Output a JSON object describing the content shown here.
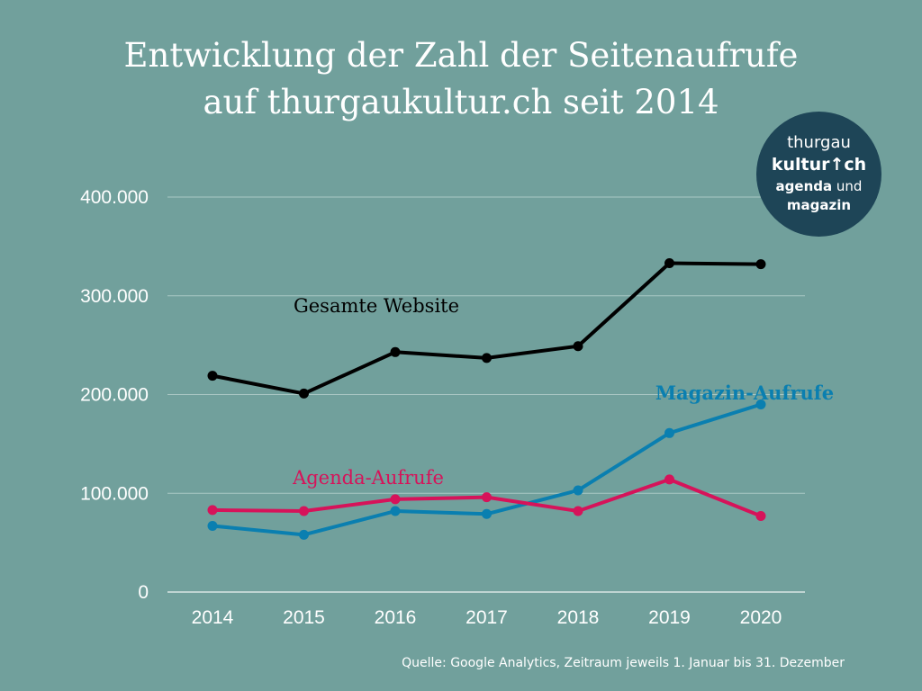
{
  "title": {
    "line1": "Entwicklung der Zahl der Seitenaufrufe",
    "line2": "auf thurgaukultur.ch seit 2014"
  },
  "logo": {
    "line1": "thurgau",
    "line2_a": "kultur",
    "line2_b": "ch",
    "line3_a": "agenda",
    "line3_b": "und",
    "line4": "magazin",
    "icon": "arrow-up-icon"
  },
  "source": "Quelle: Google Analytics, Zeitraum jeweils 1. Januar bis 31. Dezember",
  "chart_data": {
    "type": "line",
    "title": "Entwicklung der Zahl der Seitenaufrufe auf thurgaukultur.ch seit 2014",
    "xlabel": "",
    "ylabel": "",
    "categories": [
      "2014",
      "2015",
      "2016",
      "2017",
      "2018",
      "2019",
      "2020"
    ],
    "ylim": [
      0,
      400000
    ],
    "yticks": [
      0,
      100000,
      200000,
      300000,
      400000
    ],
    "ytick_labels": [
      "0",
      "100.000",
      "200.000",
      "300.000",
      "400.000"
    ],
    "grid": true,
    "series": [
      {
        "name": "Gesamte Website",
        "color": "#000000",
        "values": [
          219000,
          201000,
          243000,
          237000,
          249000,
          333000,
          332000
        ]
      },
      {
        "name": "Magazin-Aufrufe",
        "color": "#0a7fb0",
        "values": [
          67000,
          58000,
          82000,
          79000,
          103000,
          161000,
          190000
        ]
      },
      {
        "name": "Agenda-Aufrufe",
        "color": "#d6135a",
        "values": [
          83000,
          82000,
          94000,
          96000,
          82000,
          114000,
          77000
        ]
      }
    ]
  }
}
